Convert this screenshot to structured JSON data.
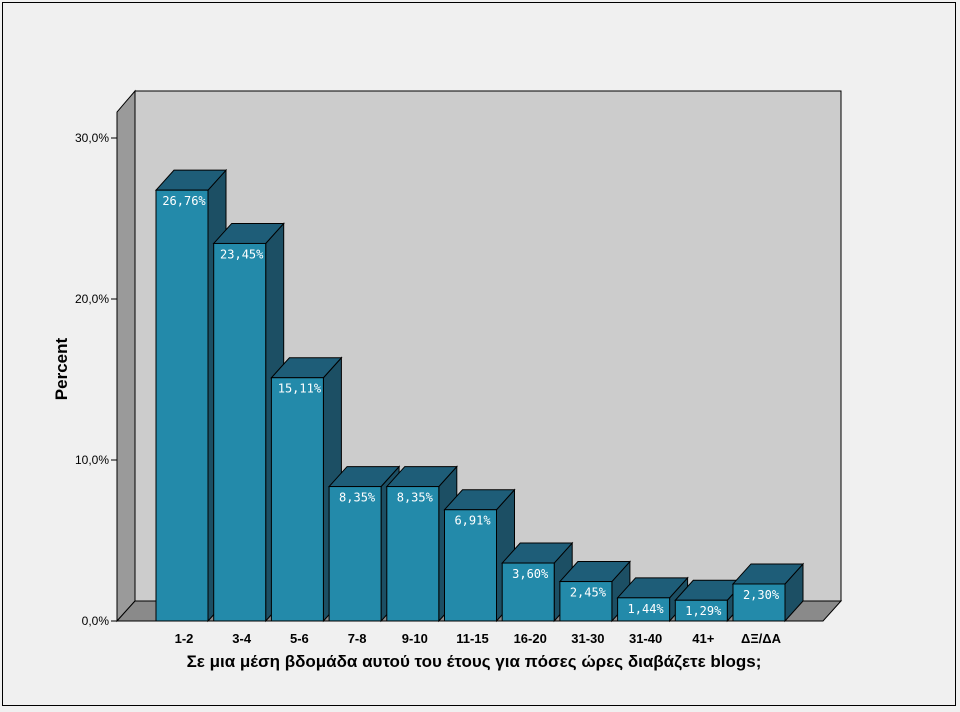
{
  "chart_data": {
    "type": "bar",
    "style": "3d",
    "xlabel": "Σε μια μέση βδομάδα αυτού του έτους για πόσες ώρες διαβάζετε blogs;",
    "ylabel": "Percent",
    "ylim": [
      0,
      30
    ],
    "yticks": [
      {
        "value": 0,
        "label": "0,0%"
      },
      {
        "value": 10,
        "label": "10,0%"
      },
      {
        "value": 20,
        "label": "20,0%"
      },
      {
        "value": 30,
        "label": "30,0%"
      }
    ],
    "categories": [
      "1-2",
      "3-4",
      "5-6",
      "7-8",
      "9-10",
      "11-15",
      "16-20",
      "31-30",
      "31-40",
      "41+",
      "ΔΞ/ΔΑ"
    ],
    "values": [
      26.76,
      23.45,
      15.11,
      8.35,
      8.35,
      6.91,
      3.6,
      2.45,
      1.44,
      1.29,
      2.3
    ],
    "data_labels": [
      "26,76%",
      "23,45%",
      "15,11%",
      "8,35%",
      "8,35%",
      "6,91%",
      "3,60%",
      "2,45%",
      "1,44%",
      "1,29%",
      "2,30%"
    ],
    "grid": false,
    "legend": "none",
    "colors": {
      "bar_front": "#238aaa",
      "bar_top": "#1e5d78",
      "bar_side": "#1c4f64",
      "plot_back": "#cccccc",
      "plot_side": "#9a9a9a",
      "plot_floor": "#8a8a8a",
      "background": "#f0f0f0"
    }
  }
}
